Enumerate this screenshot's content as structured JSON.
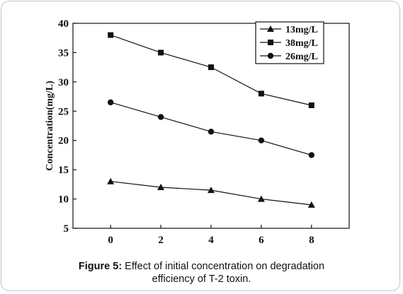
{
  "chart_data": {
    "type": "line",
    "x": [
      0,
      2,
      4,
      6,
      8
    ],
    "series": [
      {
        "name": "13mg/L",
        "marker": "triangle",
        "values": [
          13,
          12,
          11.5,
          10,
          9
        ]
      },
      {
        "name": "38mg/L",
        "marker": "square",
        "values": [
          38,
          35,
          32.5,
          28,
          26
        ]
      },
      {
        "name": "26mg/L",
        "marker": "circle",
        "values": [
          26.5,
          24,
          21.5,
          20,
          17.5
        ]
      }
    ],
    "xticks": [
      "0",
      "2",
      "4",
      "6",
      "8"
    ],
    "yticks": [
      "5",
      "10",
      "15",
      "20",
      "25",
      "30",
      "35",
      "40"
    ],
    "ylabel": "Concentration(mg/L)",
    "xlabel": "",
    "xlim": [
      -1.5,
      9.5
    ],
    "ylim": [
      5,
      40
    ],
    "legend_position": "top-right",
    "grid": false
  },
  "caption": {
    "label": "Figure 5:",
    "line1": " Effect of initial concentration on degradation",
    "line2": "efficiency of T-2 toxin."
  },
  "colors": {
    "series": "#111111",
    "axis": "#111111",
    "border": "#b9c7d6"
  }
}
